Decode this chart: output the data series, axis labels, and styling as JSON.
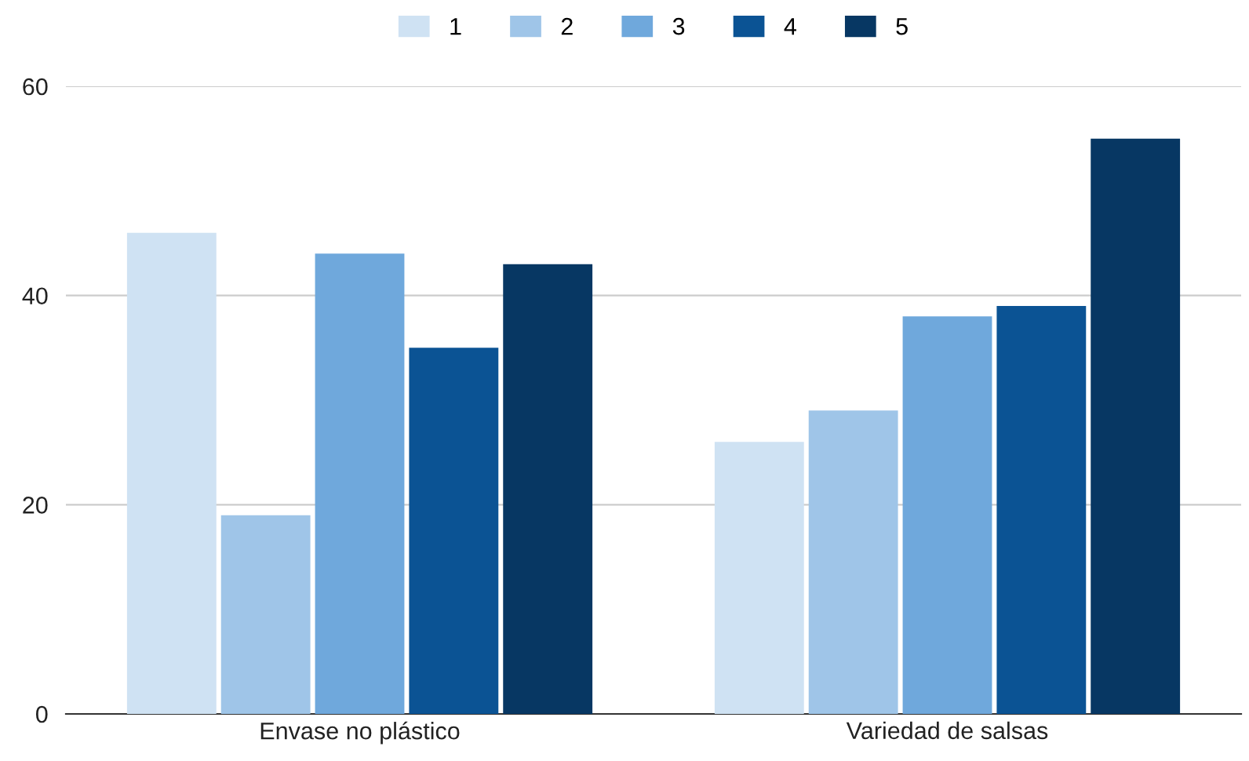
{
  "chart_data": {
    "type": "bar",
    "categories": [
      "Envase no plástico",
      "Variedad de salsas"
    ],
    "series": [
      {
        "name": "1",
        "color": "#cfe2f3",
        "values": [
          46,
          26
        ]
      },
      {
        "name": "2",
        "color": "#9fc5e8",
        "values": [
          19,
          29
        ]
      },
      {
        "name": "3",
        "color": "#6fa8dc",
        "values": [
          44,
          38
        ]
      },
      {
        "name": "4",
        "color": "#0b5394",
        "values": [
          35,
          39
        ]
      },
      {
        "name": "5",
        "color": "#073763",
        "values": [
          43,
          55
        ]
      }
    ],
    "ylim": [
      0,
      60
    ],
    "yticks": [
      0,
      20,
      40,
      60
    ],
    "grid": "y",
    "legend": "top"
  }
}
